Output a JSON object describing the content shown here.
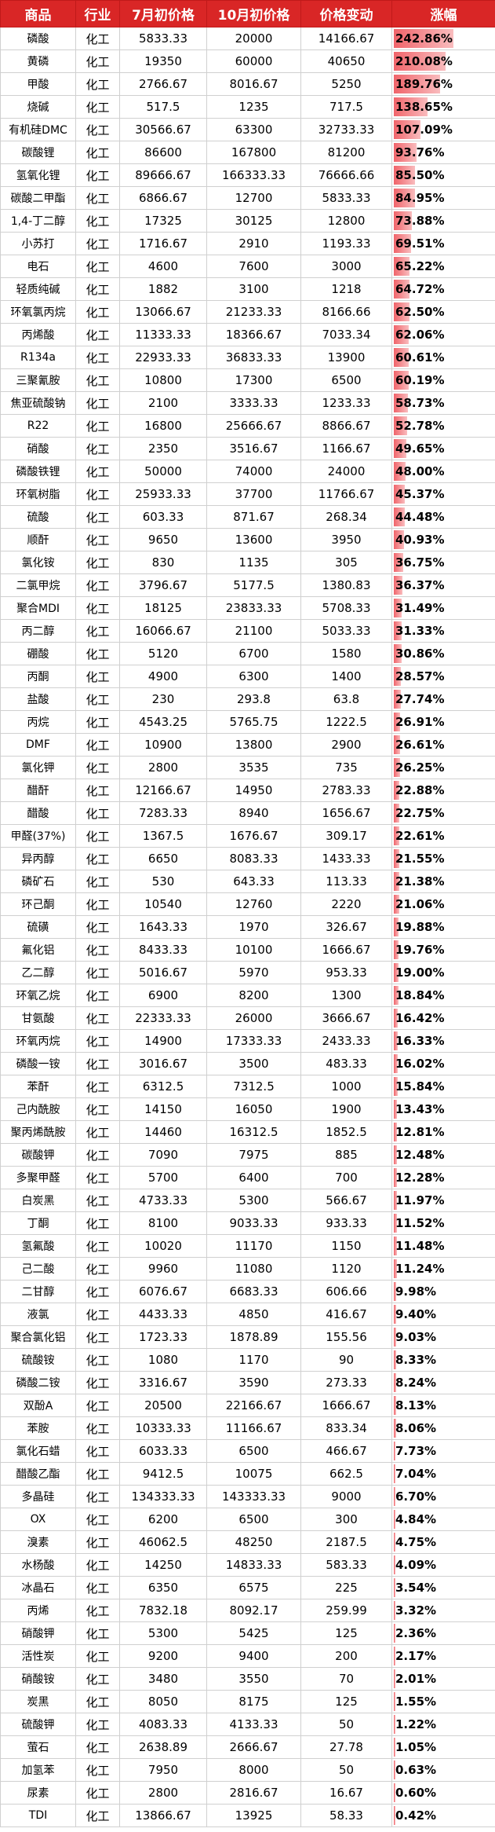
{
  "headers": [
    "商品",
    "行业",
    "7月初价格",
    "10月初价格",
    "价格变动",
    "涨幅"
  ],
  "max_change_pct": 242.86,
  "bar_color": "#f0646a",
  "header_color": "#d92626",
  "rows": [
    {
      "name": "磷酸",
      "industry": "化工",
      "jul": "5833.33",
      "oct": "20000",
      "change": "14166.67",
      "pct": "242.86%",
      "pct_value": 242.86
    },
    {
      "name": "黄磷",
      "industry": "化工",
      "jul": "19350",
      "oct": "60000",
      "change": "40650",
      "pct": "210.08%",
      "pct_value": 210.08
    },
    {
      "name": "甲酸",
      "industry": "化工",
      "jul": "2766.67",
      "oct": "8016.67",
      "change": "5250",
      "pct": "189.76%",
      "pct_value": 189.76
    },
    {
      "name": "烧碱",
      "industry": "化工",
      "jul": "517.5",
      "oct": "1235",
      "change": "717.5",
      "pct": "138.65%",
      "pct_value": 138.65
    },
    {
      "name": "有机硅DMC",
      "industry": "化工",
      "jul": "30566.67",
      "oct": "63300",
      "change": "32733.33",
      "pct": "107.09%",
      "pct_value": 107.09
    },
    {
      "name": "碳酸锂",
      "industry": "化工",
      "jul": "86600",
      "oct": "167800",
      "change": "81200",
      "pct": "93.76%",
      "pct_value": 93.76
    },
    {
      "name": "氢氧化锂",
      "industry": "化工",
      "jul": "89666.67",
      "oct": "166333.33",
      "change": "76666.66",
      "pct": "85.50%",
      "pct_value": 85.5
    },
    {
      "name": "碳酸二甲酯",
      "industry": "化工",
      "jul": "6866.67",
      "oct": "12700",
      "change": "5833.33",
      "pct": "84.95%",
      "pct_value": 84.95
    },
    {
      "name": "1,4-丁二醇",
      "industry": "化工",
      "jul": "17325",
      "oct": "30125",
      "change": "12800",
      "pct": "73.88%",
      "pct_value": 73.88
    },
    {
      "name": "小苏打",
      "industry": "化工",
      "jul": "1716.67",
      "oct": "2910",
      "change": "1193.33",
      "pct": "69.51%",
      "pct_value": 69.51
    },
    {
      "name": "电石",
      "industry": "化工",
      "jul": "4600",
      "oct": "7600",
      "change": "3000",
      "pct": "65.22%",
      "pct_value": 65.22
    },
    {
      "name": "轻质纯碱",
      "industry": "化工",
      "jul": "1882",
      "oct": "3100",
      "change": "1218",
      "pct": "64.72%",
      "pct_value": 64.72
    },
    {
      "name": "环氧氯丙烷",
      "industry": "化工",
      "jul": "13066.67",
      "oct": "21233.33",
      "change": "8166.66",
      "pct": "62.50%",
      "pct_value": 62.5
    },
    {
      "name": "丙烯酸",
      "industry": "化工",
      "jul": "11333.33",
      "oct": "18366.67",
      "change": "7033.34",
      "pct": "62.06%",
      "pct_value": 62.06
    },
    {
      "name": "R134a",
      "industry": "化工",
      "jul": "22933.33",
      "oct": "36833.33",
      "change": "13900",
      "pct": "60.61%",
      "pct_value": 60.61
    },
    {
      "name": "三聚氰胺",
      "industry": "化工",
      "jul": "10800",
      "oct": "17300",
      "change": "6500",
      "pct": "60.19%",
      "pct_value": 60.19
    },
    {
      "name": "焦亚硫酸钠",
      "industry": "化工",
      "jul": "2100",
      "oct": "3333.33",
      "change": "1233.33",
      "pct": "58.73%",
      "pct_value": 58.73
    },
    {
      "name": "R22",
      "industry": "化工",
      "jul": "16800",
      "oct": "25666.67",
      "change": "8866.67",
      "pct": "52.78%",
      "pct_value": 52.78
    },
    {
      "name": "硝酸",
      "industry": "化工",
      "jul": "2350",
      "oct": "3516.67",
      "change": "1166.67",
      "pct": "49.65%",
      "pct_value": 49.65
    },
    {
      "name": "磷酸铁锂",
      "industry": "化工",
      "jul": "50000",
      "oct": "74000",
      "change": "24000",
      "pct": "48.00%",
      "pct_value": 48.0
    },
    {
      "name": "环氧树脂",
      "industry": "化工",
      "jul": "25933.33",
      "oct": "37700",
      "change": "11766.67",
      "pct": "45.37%",
      "pct_value": 45.37
    },
    {
      "name": "硫酸",
      "industry": "化工",
      "jul": "603.33",
      "oct": "871.67",
      "change": "268.34",
      "pct": "44.48%",
      "pct_value": 44.48
    },
    {
      "name": "顺酐",
      "industry": "化工",
      "jul": "9650",
      "oct": "13600",
      "change": "3950",
      "pct": "40.93%",
      "pct_value": 40.93
    },
    {
      "name": "氯化铵",
      "industry": "化工",
      "jul": "830",
      "oct": "1135",
      "change": "305",
      "pct": "36.75%",
      "pct_value": 36.75
    },
    {
      "name": "二氯甲烷",
      "industry": "化工",
      "jul": "3796.67",
      "oct": "5177.5",
      "change": "1380.83",
      "pct": "36.37%",
      "pct_value": 36.37
    },
    {
      "name": "聚合MDI",
      "industry": "化工",
      "jul": "18125",
      "oct": "23833.33",
      "change": "5708.33",
      "pct": "31.49%",
      "pct_value": 31.49
    },
    {
      "name": "丙二醇",
      "industry": "化工",
      "jul": "16066.67",
      "oct": "21100",
      "change": "5033.33",
      "pct": "31.33%",
      "pct_value": 31.33
    },
    {
      "name": "硼酸",
      "industry": "化工",
      "jul": "5120",
      "oct": "6700",
      "change": "1580",
      "pct": "30.86%",
      "pct_value": 30.86
    },
    {
      "name": "丙酮",
      "industry": "化工",
      "jul": "4900",
      "oct": "6300",
      "change": "1400",
      "pct": "28.57%",
      "pct_value": 28.57
    },
    {
      "name": "盐酸",
      "industry": "化工",
      "jul": "230",
      "oct": "293.8",
      "change": "63.8",
      "pct": "27.74%",
      "pct_value": 27.74
    },
    {
      "name": "丙烷",
      "industry": "化工",
      "jul": "4543.25",
      "oct": "5765.75",
      "change": "1222.5",
      "pct": "26.91%",
      "pct_value": 26.91
    },
    {
      "name": "DMF",
      "industry": "化工",
      "jul": "10900",
      "oct": "13800",
      "change": "2900",
      "pct": "26.61%",
      "pct_value": 26.61
    },
    {
      "name": "氯化钾",
      "industry": "化工",
      "jul": "2800",
      "oct": "3535",
      "change": "735",
      "pct": "26.25%",
      "pct_value": 26.25
    },
    {
      "name": "醋酐",
      "industry": "化工",
      "jul": "12166.67",
      "oct": "14950",
      "change": "2783.33",
      "pct": "22.88%",
      "pct_value": 22.88
    },
    {
      "name": "醋酸",
      "industry": "化工",
      "jul": "7283.33",
      "oct": "8940",
      "change": "1656.67",
      "pct": "22.75%",
      "pct_value": 22.75
    },
    {
      "name": "甲醛(37%)",
      "industry": "化工",
      "jul": "1367.5",
      "oct": "1676.67",
      "change": "309.17",
      "pct": "22.61%",
      "pct_value": 22.61
    },
    {
      "name": "异丙醇",
      "industry": "化工",
      "jul": "6650",
      "oct": "8083.33",
      "change": "1433.33",
      "pct": "21.55%",
      "pct_value": 21.55
    },
    {
      "name": "磷矿石",
      "industry": "化工",
      "jul": "530",
      "oct": "643.33",
      "change": "113.33",
      "pct": "21.38%",
      "pct_value": 21.38
    },
    {
      "name": "环己酮",
      "industry": "化工",
      "jul": "10540",
      "oct": "12760",
      "change": "2220",
      "pct": "21.06%",
      "pct_value": 21.06
    },
    {
      "name": "硫磺",
      "industry": "化工",
      "jul": "1643.33",
      "oct": "1970",
      "change": "326.67",
      "pct": "19.88%",
      "pct_value": 19.88
    },
    {
      "name": "氟化铝",
      "industry": "化工",
      "jul": "8433.33",
      "oct": "10100",
      "change": "1666.67",
      "pct": "19.76%",
      "pct_value": 19.76
    },
    {
      "name": "乙二醇",
      "industry": "化工",
      "jul": "5016.67",
      "oct": "5970",
      "change": "953.33",
      "pct": "19.00%",
      "pct_value": 19.0
    },
    {
      "name": "环氧乙烷",
      "industry": "化工",
      "jul": "6900",
      "oct": "8200",
      "change": "1300",
      "pct": "18.84%",
      "pct_value": 18.84
    },
    {
      "name": "甘氨酸",
      "industry": "化工",
      "jul": "22333.33",
      "oct": "26000",
      "change": "3666.67",
      "pct": "16.42%",
      "pct_value": 16.42
    },
    {
      "name": "环氧丙烷",
      "industry": "化工",
      "jul": "14900",
      "oct": "17333.33",
      "change": "2433.33",
      "pct": "16.33%",
      "pct_value": 16.33
    },
    {
      "name": "磷酸一铵",
      "industry": "化工",
      "jul": "3016.67",
      "oct": "3500",
      "change": "483.33",
      "pct": "16.02%",
      "pct_value": 16.02
    },
    {
      "name": "苯酐",
      "industry": "化工",
      "jul": "6312.5",
      "oct": "7312.5",
      "change": "1000",
      "pct": "15.84%",
      "pct_value": 15.84
    },
    {
      "name": "己内酰胺",
      "industry": "化工",
      "jul": "14150",
      "oct": "16050",
      "change": "1900",
      "pct": "13.43%",
      "pct_value": 13.43
    },
    {
      "name": "聚丙烯酰胺",
      "industry": "化工",
      "jul": "14460",
      "oct": "16312.5",
      "change": "1852.5",
      "pct": "12.81%",
      "pct_value": 12.81
    },
    {
      "name": "碳酸钾",
      "industry": "化工",
      "jul": "7090",
      "oct": "7975",
      "change": "885",
      "pct": "12.48%",
      "pct_value": 12.48
    },
    {
      "name": "多聚甲醛",
      "industry": "化工",
      "jul": "5700",
      "oct": "6400",
      "change": "700",
      "pct": "12.28%",
      "pct_value": 12.28
    },
    {
      "name": "白炭黑",
      "industry": "化工",
      "jul": "4733.33",
      "oct": "5300",
      "change": "566.67",
      "pct": "11.97%",
      "pct_value": 11.97
    },
    {
      "name": "丁酮",
      "industry": "化工",
      "jul": "8100",
      "oct": "9033.33",
      "change": "933.33",
      "pct": "11.52%",
      "pct_value": 11.52
    },
    {
      "name": "氢氟酸",
      "industry": "化工",
      "jul": "10020",
      "oct": "11170",
      "change": "1150",
      "pct": "11.48%",
      "pct_value": 11.48
    },
    {
      "name": "己二酸",
      "industry": "化工",
      "jul": "9960",
      "oct": "11080",
      "change": "1120",
      "pct": "11.24%",
      "pct_value": 11.24
    },
    {
      "name": "二甘醇",
      "industry": "化工",
      "jul": "6076.67",
      "oct": "6683.33",
      "change": "606.66",
      "pct": "9.98%",
      "pct_value": 9.98
    },
    {
      "name": "液氯",
      "industry": "化工",
      "jul": "4433.33",
      "oct": "4850",
      "change": "416.67",
      "pct": "9.40%",
      "pct_value": 9.4
    },
    {
      "name": "聚合氯化铝",
      "industry": "化工",
      "jul": "1723.33",
      "oct": "1878.89",
      "change": "155.56",
      "pct": "9.03%",
      "pct_value": 9.03
    },
    {
      "name": "硫酸铵",
      "industry": "化工",
      "jul": "1080",
      "oct": "1170",
      "change": "90",
      "pct": "8.33%",
      "pct_value": 8.33
    },
    {
      "name": "磷酸二铵",
      "industry": "化工",
      "jul": "3316.67",
      "oct": "3590",
      "change": "273.33",
      "pct": "8.24%",
      "pct_value": 8.24
    },
    {
      "name": "双酚A",
      "industry": "化工",
      "jul": "20500",
      "oct": "22166.67",
      "change": "1666.67",
      "pct": "8.13%",
      "pct_value": 8.13
    },
    {
      "name": "苯胺",
      "industry": "化工",
      "jul": "10333.33",
      "oct": "11166.67",
      "change": "833.34",
      "pct": "8.06%",
      "pct_value": 8.06
    },
    {
      "name": "氯化石蜡",
      "industry": "化工",
      "jul": "6033.33",
      "oct": "6500",
      "change": "466.67",
      "pct": "7.73%",
      "pct_value": 7.73
    },
    {
      "name": "醋酸乙酯",
      "industry": "化工",
      "jul": "9412.5",
      "oct": "10075",
      "change": "662.5",
      "pct": "7.04%",
      "pct_value": 7.04
    },
    {
      "name": "多晶硅",
      "industry": "化工",
      "jul": "134333.33",
      "oct": "143333.33",
      "change": "9000",
      "pct": "6.70%",
      "pct_value": 6.7
    },
    {
      "name": "OX",
      "industry": "化工",
      "jul": "6200",
      "oct": "6500",
      "change": "300",
      "pct": "4.84%",
      "pct_value": 4.84
    },
    {
      "name": "溴素",
      "industry": "化工",
      "jul": "46062.5",
      "oct": "48250",
      "change": "2187.5",
      "pct": "4.75%",
      "pct_value": 4.75
    },
    {
      "name": "水杨酸",
      "industry": "化工",
      "jul": "14250",
      "oct": "14833.33",
      "change": "583.33",
      "pct": "4.09%",
      "pct_value": 4.09
    },
    {
      "name": "冰晶石",
      "industry": "化工",
      "jul": "6350",
      "oct": "6575",
      "change": "225",
      "pct": "3.54%",
      "pct_value": 3.54
    },
    {
      "name": "丙烯",
      "industry": "化工",
      "jul": "7832.18",
      "oct": "8092.17",
      "change": "259.99",
      "pct": "3.32%",
      "pct_value": 3.32
    },
    {
      "name": "硝酸钾",
      "industry": "化工",
      "jul": "5300",
      "oct": "5425",
      "change": "125",
      "pct": "2.36%",
      "pct_value": 2.36
    },
    {
      "name": "活性炭",
      "industry": "化工",
      "jul": "9200",
      "oct": "9400",
      "change": "200",
      "pct": "2.17%",
      "pct_value": 2.17
    },
    {
      "name": "硝酸铵",
      "industry": "化工",
      "jul": "3480",
      "oct": "3550",
      "change": "70",
      "pct": "2.01%",
      "pct_value": 2.01
    },
    {
      "name": "炭黑",
      "industry": "化工",
      "jul": "8050",
      "oct": "8175",
      "change": "125",
      "pct": "1.55%",
      "pct_value": 1.55
    },
    {
      "name": "硫酸钾",
      "industry": "化工",
      "jul": "4083.33",
      "oct": "4133.33",
      "change": "50",
      "pct": "1.22%",
      "pct_value": 1.22
    },
    {
      "name": "萤石",
      "industry": "化工",
      "jul": "2638.89",
      "oct": "2666.67",
      "change": "27.78",
      "pct": "1.05%",
      "pct_value": 1.05
    },
    {
      "name": "加氢苯",
      "industry": "化工",
      "jul": "7950",
      "oct": "8000",
      "change": "50",
      "pct": "0.63%",
      "pct_value": 0.63
    },
    {
      "name": "尿素",
      "industry": "化工",
      "jul": "2800",
      "oct": "2816.67",
      "change": "16.67",
      "pct": "0.60%",
      "pct_value": 0.6
    },
    {
      "name": "TDI",
      "industry": "化工",
      "jul": "13866.67",
      "oct": "13925",
      "change": "58.33",
      "pct": "0.42%",
      "pct_value": 0.42
    }
  ]
}
